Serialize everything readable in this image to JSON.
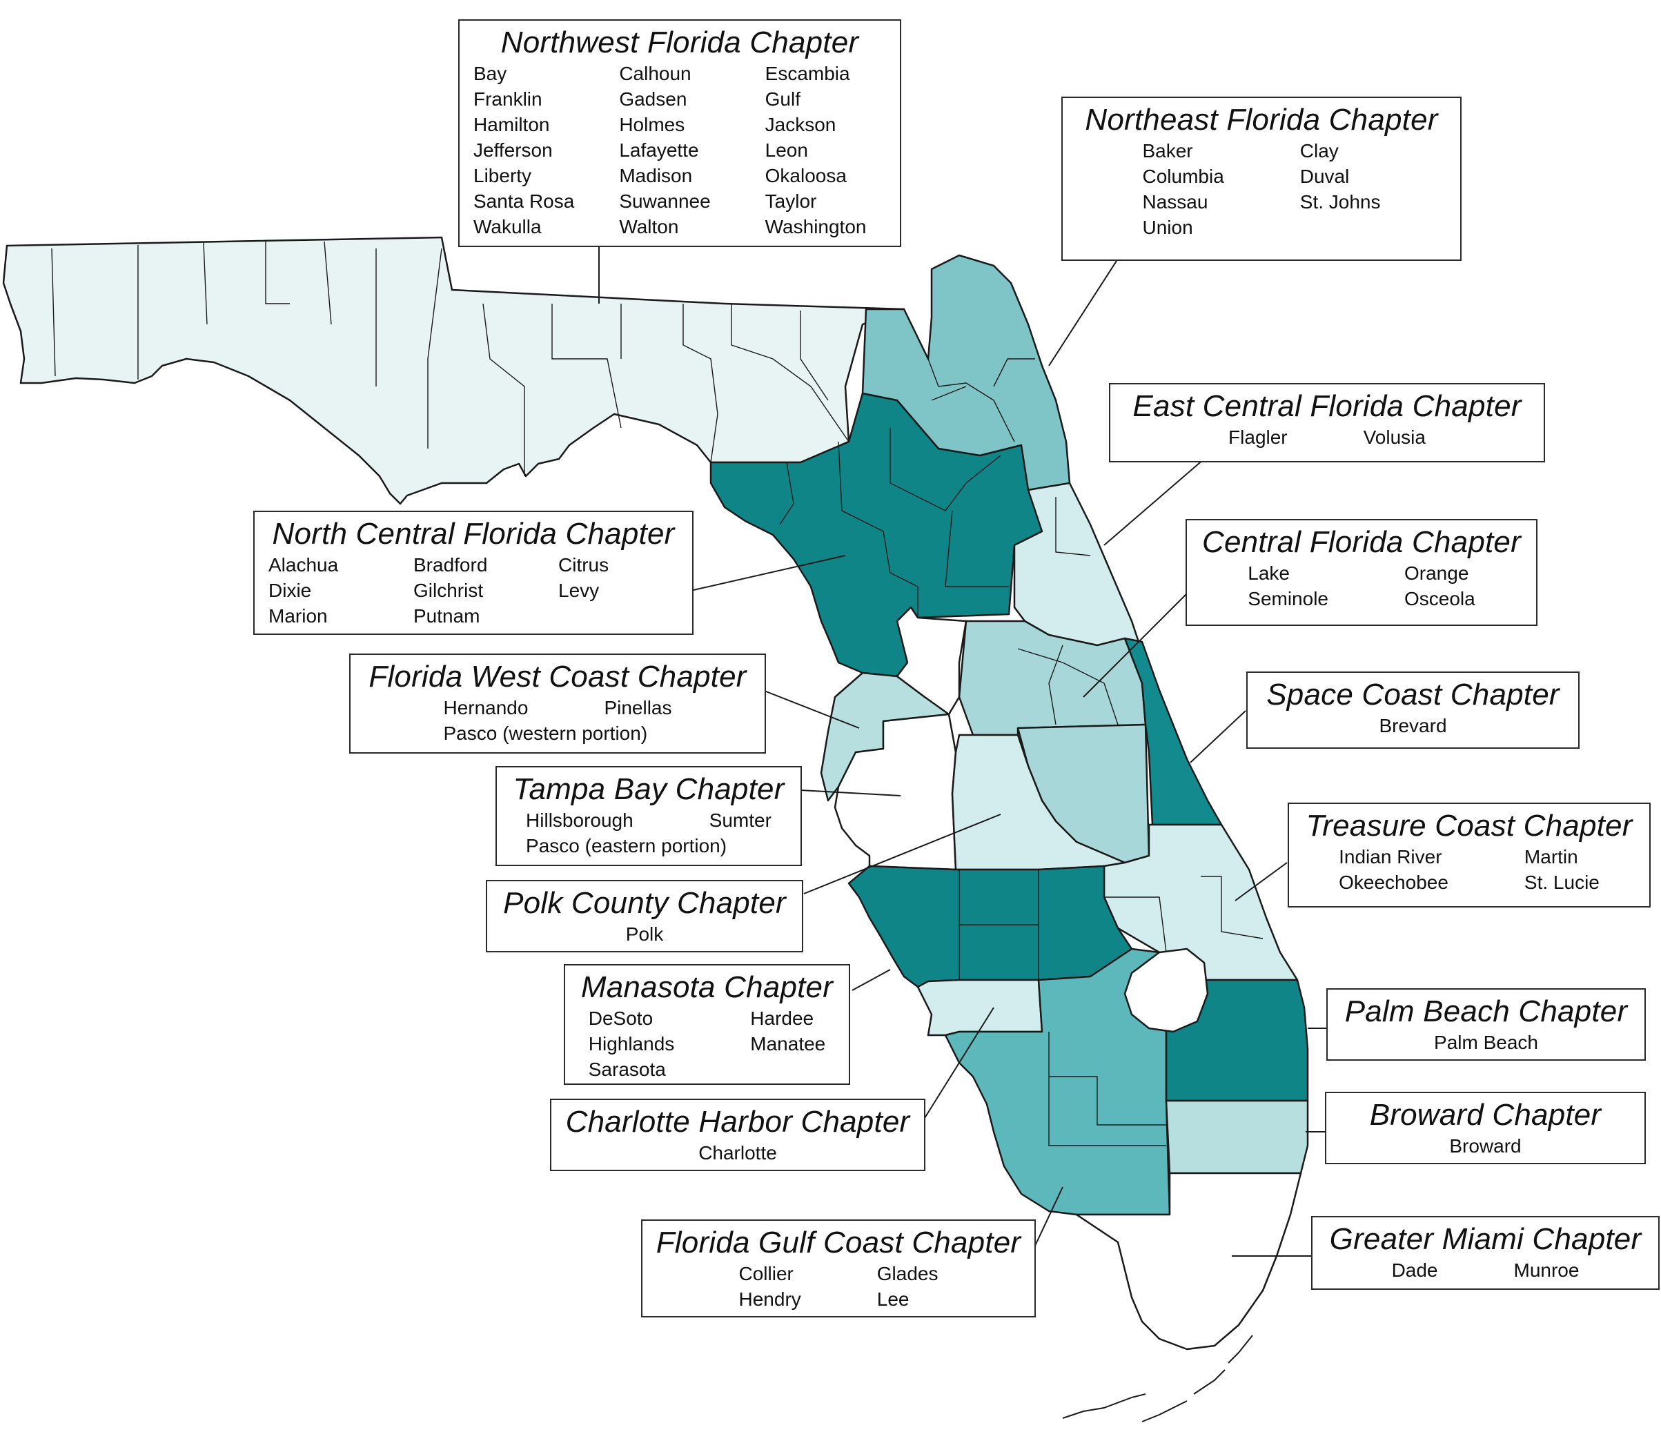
{
  "colors": {
    "lightest": "#e8f3f3",
    "light": "#d3eced",
    "light_medium": "#b7dfe0",
    "medium": "#a7d7d8",
    "medium_dark": "#7fc5c8",
    "teal": "#5cb8bb",
    "dark": "#138b8e",
    "darker": "#0f8587",
    "white": "#ffffff",
    "outline": "#1a1a1a"
  },
  "chapters": [
    {
      "id": "northwest",
      "title": "Northwest Florida Chapter",
      "columns": 3,
      "counties": [
        "Bay",
        "Calhoun",
        "Escambia",
        "Franklin",
        "Gadsen",
        "Gulf",
        "Hamilton",
        "Holmes",
        "Jackson",
        "Jefferson",
        "Lafayette",
        "Leon",
        "Liberty",
        "Madison",
        "Okaloosa",
        "Santa Rosa",
        "Suwannee",
        "Taylor",
        "Wakulla",
        "Walton",
        "Washington"
      ]
    },
    {
      "id": "northeast",
      "title": "Northeast Florida Chapter",
      "columns": 2,
      "counties": [
        "Baker",
        "Clay",
        "Columbia",
        "Duval",
        "Nassau",
        "St. Johns",
        "Union"
      ]
    },
    {
      "id": "east-central",
      "title": "East Central Florida Chapter",
      "columns": 2,
      "counties": [
        "Flagler",
        "Volusia"
      ]
    },
    {
      "id": "north-central",
      "title": "North Central Florida Chapter",
      "columns": 3,
      "counties": [
        "Alachua",
        "Bradford",
        "Citrus",
        "Dixie",
        "Gilchrist",
        "Levy",
        "Marion",
        "Putnam"
      ]
    },
    {
      "id": "central",
      "title": "Central Florida Chapter",
      "columns": 2,
      "counties": [
        "Lake",
        "Orange",
        "Seminole",
        "Osceola"
      ]
    },
    {
      "id": "west-coast",
      "title": "Florida West Coast Chapter",
      "columns": 2,
      "counties": [
        "Hernando",
        "Pinellas",
        "Pasco (western portion)"
      ]
    },
    {
      "id": "space-coast",
      "title": "Space Coast Chapter",
      "columns": 1,
      "counties": [
        "Brevard"
      ]
    },
    {
      "id": "tampa-bay",
      "title": "Tampa Bay Chapter",
      "columns": 2,
      "counties": [
        "Hillsborough",
        "Sumter",
        "Pasco (eastern portion)"
      ]
    },
    {
      "id": "treasure-coast",
      "title": "Treasure Coast Chapter",
      "columns": 2,
      "counties": [
        "Indian River",
        "Martin",
        "Okeechobee",
        "St. Lucie"
      ]
    },
    {
      "id": "polk",
      "title": "Polk County Chapter",
      "columns": 1,
      "counties": [
        "Polk"
      ]
    },
    {
      "id": "manasota",
      "title": "Manasota Chapter",
      "columns": 2,
      "counties": [
        "DeSoto",
        "Hardee",
        "Highlands",
        "Manatee",
        "Sarasota"
      ]
    },
    {
      "id": "palm-beach",
      "title": "Palm Beach Chapter",
      "columns": 1,
      "counties": [
        "Palm Beach"
      ]
    },
    {
      "id": "broward",
      "title": "Broward Chapter",
      "columns": 1,
      "counties": [
        "Broward"
      ]
    },
    {
      "id": "charlotte-harbor",
      "title": "Charlotte Harbor Chapter",
      "columns": 1,
      "counties": [
        "Charlotte"
      ]
    },
    {
      "id": "greater-miami",
      "title": "Greater Miami Chapter",
      "columns": 2,
      "counties": [
        "Dade",
        "Munroe"
      ]
    },
    {
      "id": "gulf-coast",
      "title": "Florida Gulf Coast Chapter",
      "columns": 2,
      "counties": [
        "Collier",
        "Glades",
        "Hendry",
        "Lee"
      ]
    }
  ]
}
